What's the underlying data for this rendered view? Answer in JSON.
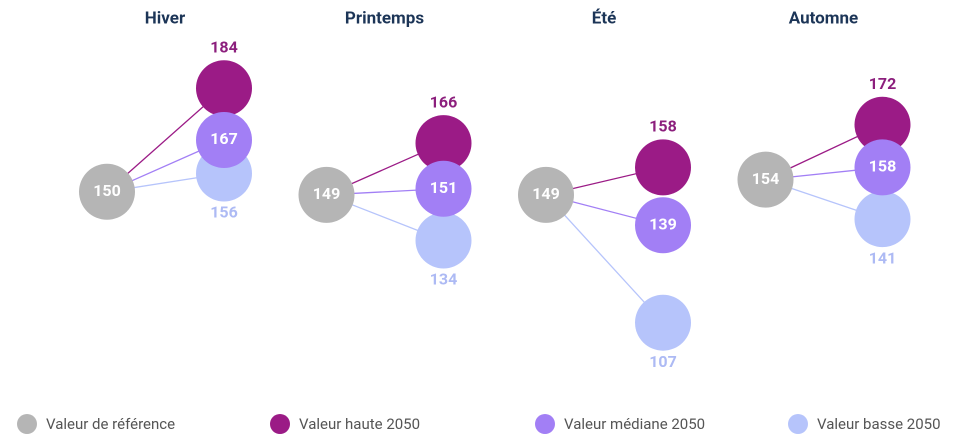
{
  "chart_data": {
    "type": "dot",
    "categories": [
      "Hiver",
      "Printemps",
      "Été",
      "Automne"
    ],
    "series": [
      {
        "name": "Valeur de référence",
        "color": "#b5b5b5",
        "values": [
          150,
          149,
          149,
          154
        ]
      },
      {
        "name": "Valeur haute 2050",
        "color": "#9b1b86",
        "values": [
          184,
          166,
          158,
          172
        ]
      },
      {
        "name": "Valeur médiane 2050",
        "color": "#a27ff5",
        "values": [
          167,
          151,
          139,
          158
        ]
      },
      {
        "name": "Valeur basse 2050",
        "color": "#b6c4fb",
        "values": [
          156,
          134,
          107,
          141
        ]
      }
    ],
    "ylim": [
      100,
      190
    ]
  }
}
